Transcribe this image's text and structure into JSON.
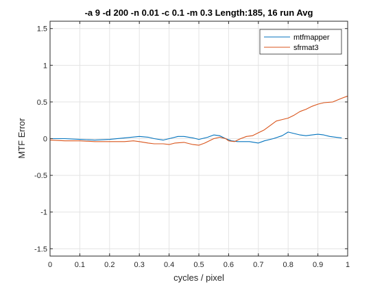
{
  "chart_data": {
    "type": "line",
    "title": "-a 9 -d 200 -n 0.01 -c 0.1 -m 0.3 Length:185, 16 run Avg",
    "xlabel": "cycles / pixel",
    "ylabel": "MTF Error",
    "xlim": [
      0,
      1
    ],
    "ylim": [
      -1.6,
      1.6
    ],
    "xticks": [
      0,
      0.1,
      0.2,
      0.3,
      0.4,
      0.5,
      0.6,
      0.7,
      0.8,
      0.9,
      1
    ],
    "xtick_labels": [
      "0",
      "0.1",
      "0.2",
      "0.3",
      "0.4",
      "0.5",
      "0.6",
      "0.7",
      "0.8",
      "0.9",
      "1"
    ],
    "yticks": [
      -1.5,
      -1,
      -0.5,
      0,
      0.5,
      1,
      1.5
    ],
    "ytick_labels": [
      "-1.5",
      "-1",
      "-0.5",
      "0",
      "0.5",
      "1",
      "1.5"
    ],
    "grid": true,
    "legend_position": "top-right",
    "series": [
      {
        "name": "mtfmapper",
        "color": "#0072BD",
        "x": [
          0,
          0.05,
          0.1,
          0.15,
          0.2,
          0.25,
          0.3,
          0.33,
          0.35,
          0.38,
          0.4,
          0.43,
          0.45,
          0.48,
          0.5,
          0.53,
          0.55,
          0.57,
          0.59,
          0.61,
          0.63,
          0.65,
          0.67,
          0.7,
          0.72,
          0.75,
          0.78,
          0.8,
          0.82,
          0.84,
          0.86,
          0.88,
          0.9,
          0.92,
          0.94,
          0.96,
          0.98
        ],
        "y": [
          0.0,
          0.0,
          -0.01,
          -0.02,
          -0.01,
          0.01,
          0.03,
          0.02,
          0.0,
          -0.02,
          0.0,
          0.03,
          0.03,
          0.01,
          -0.01,
          0.02,
          0.05,
          0.04,
          0.0,
          -0.03,
          -0.04,
          -0.04,
          -0.04,
          -0.06,
          -0.03,
          0.0,
          0.04,
          0.09,
          0.07,
          0.05,
          0.04,
          0.05,
          0.06,
          0.05,
          0.03,
          0.02,
          0.01
        ]
      },
      {
        "name": "sfrmat3",
        "color": "#D95319",
        "x": [
          0,
          0.05,
          0.1,
          0.15,
          0.2,
          0.25,
          0.28,
          0.3,
          0.33,
          0.35,
          0.38,
          0.4,
          0.42,
          0.45,
          0.48,
          0.5,
          0.52,
          0.55,
          0.57,
          0.59,
          0.6,
          0.62,
          0.64,
          0.66,
          0.68,
          0.7,
          0.72,
          0.74,
          0.76,
          0.78,
          0.8,
          0.82,
          0.84,
          0.86,
          0.88,
          0.9,
          0.92,
          0.95,
          0.98,
          1.0
        ],
        "y": [
          -0.02,
          -0.03,
          -0.03,
          -0.04,
          -0.04,
          -0.04,
          -0.03,
          -0.04,
          -0.06,
          -0.07,
          -0.07,
          -0.08,
          -0.06,
          -0.05,
          -0.08,
          -0.09,
          -0.06,
          0.0,
          0.02,
          0.0,
          -0.03,
          -0.04,
          0.0,
          0.03,
          0.04,
          0.08,
          0.12,
          0.18,
          0.24,
          0.26,
          0.28,
          0.32,
          0.37,
          0.4,
          0.44,
          0.47,
          0.49,
          0.5,
          0.55,
          0.58
        ]
      }
    ]
  }
}
